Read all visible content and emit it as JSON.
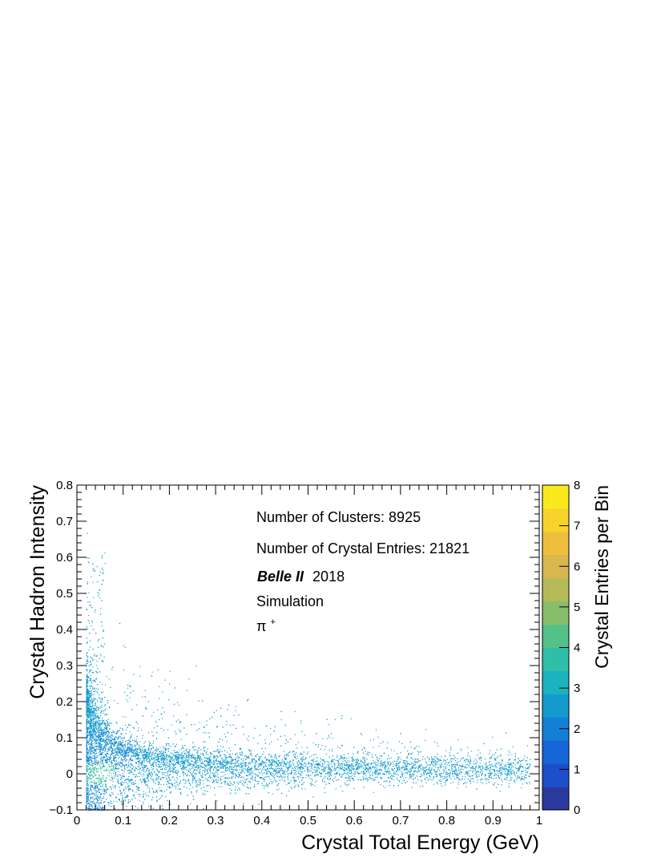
{
  "chart_data": {
    "type": "heatmap",
    "title": "",
    "xlabel": "Crystal Total Energy (GeV)",
    "ylabel": "Crystal Hadron Intensity",
    "zlabel": "Crystal Entries per Bin",
    "xlim": [
      0,
      1
    ],
    "ylim": [
      -0.1,
      0.8
    ],
    "zlim": [
      0,
      8
    ],
    "x_ticks": [
      0,
      0.1,
      0.2,
      0.3,
      0.4,
      0.5,
      0.6,
      0.7,
      0.8,
      0.9,
      1
    ],
    "x_tick_labels": [
      "0",
      "0.1",
      "0.2",
      "0.3",
      "0.4",
      "0.5",
      "0.6",
      "0.7",
      "0.8",
      "0.9",
      "1"
    ],
    "y_ticks": [
      -0.1,
      0,
      0.1,
      0.2,
      0.3,
      0.4,
      0.5,
      0.6,
      0.7,
      0.8
    ],
    "y_tick_labels": [
      "−0.1",
      "0",
      "0.1",
      "0.2",
      "0.3",
      "0.4",
      "0.5",
      "0.6",
      "0.7",
      "0.8"
    ],
    "z_ticks": [
      0,
      1,
      2,
      3,
      4,
      5,
      6,
      7,
      8
    ],
    "z_tick_labels": [
      "0",
      "1",
      "2",
      "3",
      "4",
      "5",
      "6",
      "7",
      "8"
    ],
    "annotations": {
      "clusters": "Number of Clusters: 8925",
      "entries": "Number of Crystal Entries: 21821",
      "experiment": "Belle II",
      "year": "2018",
      "simulation": "Simulation",
      "particle": "π",
      "particle_charge": "+"
    },
    "colormap": [
      "#2a3a9c",
      "#1c4fc9",
      "#1666d9",
      "#1380d6",
      "#139bcd",
      "#1cb3bf",
      "#30bea9",
      "#54c08a",
      "#86be6a",
      "#b5ba58",
      "#d8b650",
      "#f0be3f",
      "#f7d42b",
      "#f9e91c"
    ],
    "grid": false,
    "legend": "none"
  }
}
